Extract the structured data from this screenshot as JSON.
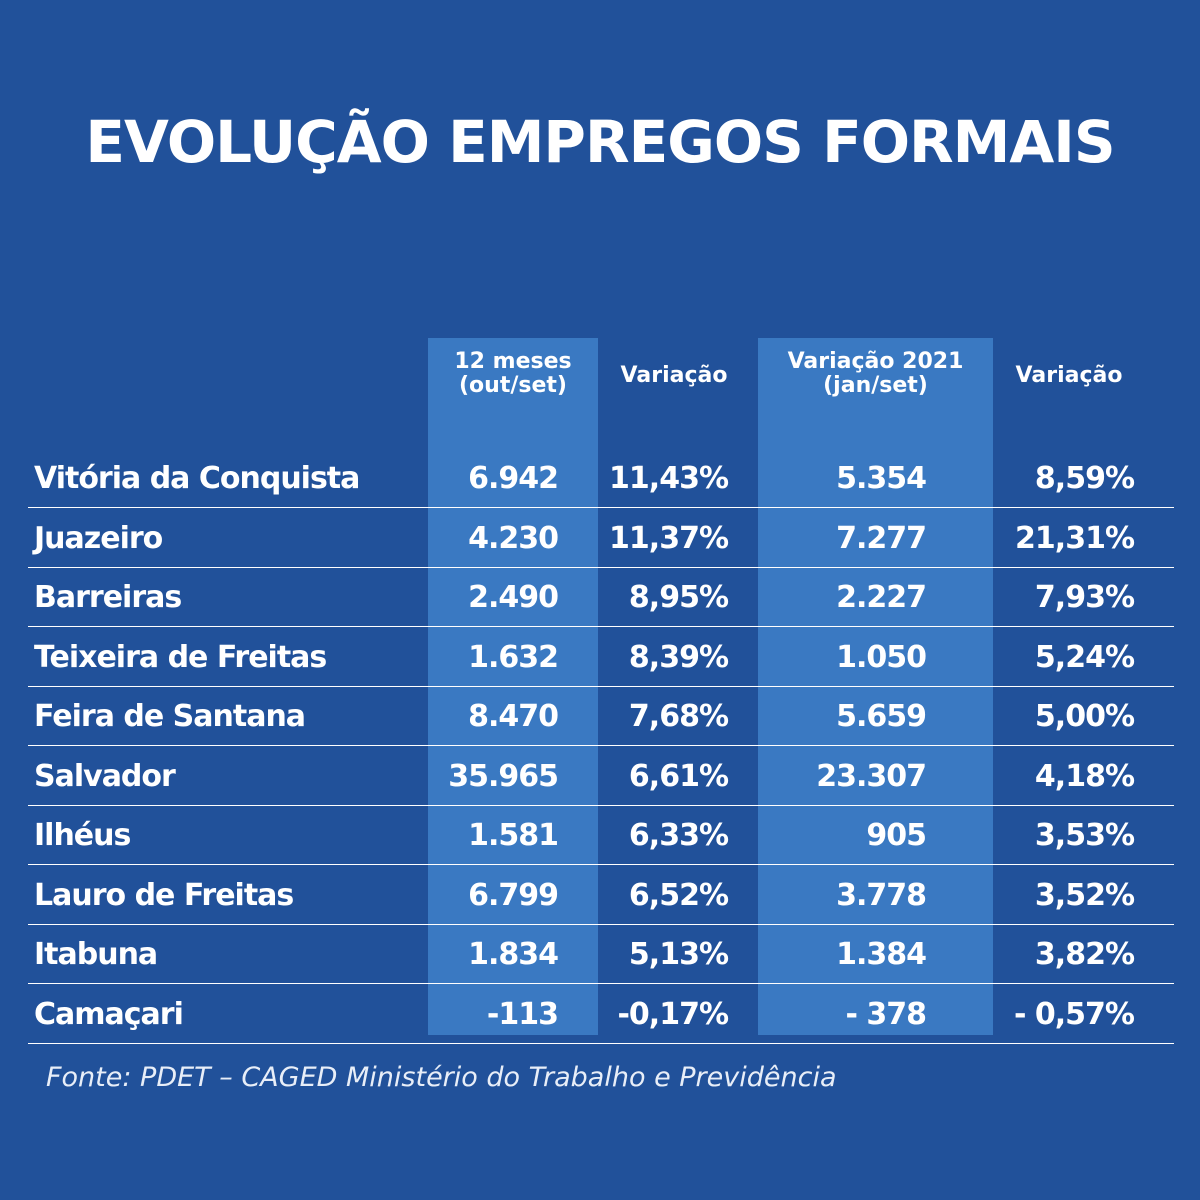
{
  "title": "EVOLUÇÃO EMPREGOS FORMAIS",
  "headers": {
    "col1_line1": "12 meses",
    "col1_line2": "(out/set)",
    "col2": "Variação",
    "col3_line1": "Variação  2021",
    "col3_line2": "(jan/set)",
    "col4": "Variação"
  },
  "rows": [
    {
      "city": "Vitória da Conquista",
      "jobs_12m": "6.942",
      "var_12m": "11,43%",
      "jobs_2021": "5.354",
      "var_2021": "8,59%"
    },
    {
      "city": "Juazeiro",
      "jobs_12m": "4.230",
      "var_12m": "11,37%",
      "jobs_2021": "7.277",
      "var_2021": "21,31%"
    },
    {
      "city": "Barreiras",
      "jobs_12m": "2.490",
      "var_12m": "8,95%",
      "jobs_2021": "2.227",
      "var_2021": "7,93%"
    },
    {
      "city": "Teixeira de Freitas",
      "jobs_12m": "1.632",
      "var_12m": "8,39%",
      "jobs_2021": "1.050",
      "var_2021": "5,24%"
    },
    {
      "city": "Feira de Santana",
      "jobs_12m": "8.470",
      "var_12m": "7,68%",
      "jobs_2021": "5.659",
      "var_2021": "5,00%"
    },
    {
      "city": "Salvador",
      "jobs_12m": "35.965",
      "var_12m": "6,61%",
      "jobs_2021": "23.307",
      "var_2021": "4,18%"
    },
    {
      "city": "Ilhéus",
      "jobs_12m": "1.581",
      "var_12m": "6,33%",
      "jobs_2021": "905",
      "var_2021": "3,53%"
    },
    {
      "city": "Lauro de Freitas",
      "jobs_12m": "6.799",
      "var_12m": "6,52%",
      "jobs_2021": "3.778",
      "var_2021": "3,52%"
    },
    {
      "city": "Itabuna",
      "jobs_12m": "1.834",
      "var_12m": "5,13%",
      "jobs_2021": "1.384",
      "var_2021": "3,82%"
    },
    {
      "city": "Camaçari",
      "jobs_12m": "-113",
      "var_12m": "-0,17%",
      "jobs_2021": "- 378",
      "var_2021": "- 0,57%"
    }
  ],
  "source": "Fonte: PDET – CAGED Ministério do Trabalho e Previdência",
  "colors": {
    "background": "#21519a",
    "highlight_column": "#3a79c2",
    "text": "#ffffff"
  }
}
